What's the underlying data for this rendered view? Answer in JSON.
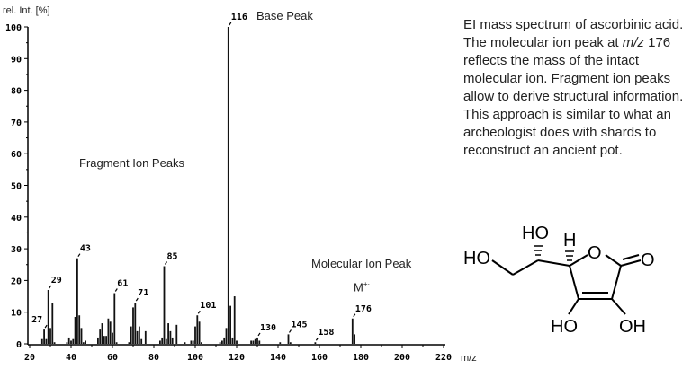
{
  "chart_data": {
    "type": "bar",
    "title": "EI mass spectrum of ascorbinic acid",
    "xlabel": "m/z",
    "ylabel": "rel. Int. [%]",
    "xlim": [
      20,
      220
    ],
    "ylim": [
      0,
      100
    ],
    "xticks": [
      20,
      40,
      60,
      80,
      100,
      120,
      140,
      160,
      180,
      200,
      220
    ],
    "yticks": [
      0,
      10,
      20,
      30,
      40,
      50,
      60,
      70,
      80,
      90,
      100
    ],
    "peaks": [
      [
        26,
        1.5
      ],
      [
        27,
        4.5
      ],
      [
        28,
        1.5
      ],
      [
        29,
        17
      ],
      [
        30,
        5
      ],
      [
        31,
        13
      ],
      [
        32,
        0.5
      ],
      [
        38,
        0.5
      ],
      [
        39,
        2
      ],
      [
        40,
        1
      ],
      [
        41,
        1.5
      ],
      [
        42,
        8.5
      ],
      [
        43,
        27
      ],
      [
        44,
        9
      ],
      [
        45,
        5
      ],
      [
        46,
        0.5
      ],
      [
        47,
        1
      ],
      [
        53,
        2
      ],
      [
        54,
        4.5
      ],
      [
        55,
        6.5
      ],
      [
        56,
        2.5
      ],
      [
        57,
        2.5
      ],
      [
        58,
        8
      ],
      [
        59,
        7
      ],
      [
        60,
        3.5
      ],
      [
        61,
        16
      ],
      [
        62,
        0.5
      ],
      [
        68,
        0.5
      ],
      [
        69,
        5.5
      ],
      [
        70,
        11.5
      ],
      [
        71,
        13
      ],
      [
        72,
        4
      ],
      [
        73,
        5.5
      ],
      [
        74,
        1.5
      ],
      [
        76,
        4
      ],
      [
        83,
        1
      ],
      [
        84,
        2
      ],
      [
        85,
        24.5
      ],
      [
        86,
        1.5
      ],
      [
        87,
        6.5
      ],
      [
        88,
        4
      ],
      [
        89,
        2
      ],
      [
        91,
        6
      ],
      [
        95,
        0.5
      ],
      [
        98,
        1
      ],
      [
        99,
        1
      ],
      [
        100,
        5.5
      ],
      [
        101,
        9
      ],
      [
        102,
        7
      ],
      [
        103,
        0.5
      ],
      [
        112,
        0.5
      ],
      [
        113,
        1
      ],
      [
        114,
        2
      ],
      [
        115,
        5
      ],
      [
        116,
        100
      ],
      [
        117,
        12
      ],
      [
        118,
        2
      ],
      [
        119,
        15
      ],
      [
        120,
        1
      ],
      [
        127,
        1
      ],
      [
        128,
        1
      ],
      [
        129,
        1.5
      ],
      [
        130,
        2
      ],
      [
        131,
        1
      ],
      [
        141,
        0.5
      ],
      [
        145,
        3
      ],
      [
        146,
        0.5
      ],
      [
        158,
        0.5
      ],
      [
        176,
        8
      ],
      [
        177,
        3
      ]
    ],
    "peak_labels": [
      {
        "mz": 27,
        "text": "27"
      },
      {
        "mz": 29,
        "text": "29"
      },
      {
        "mz": 43,
        "text": "43"
      },
      {
        "mz": 61,
        "text": "61"
      },
      {
        "mz": 71,
        "text": "71"
      },
      {
        "mz": 85,
        "text": "85"
      },
      {
        "mz": 101,
        "text": "101"
      },
      {
        "mz": 116,
        "text": "116"
      },
      {
        "mz": 130,
        "text": "130"
      },
      {
        "mz": 145,
        "text": "145"
      },
      {
        "mz": 158,
        "text": "158"
      },
      {
        "mz": 176,
        "text": "176"
      }
    ],
    "annotations": {
      "base_peak": "Base Peak",
      "fragment": "Fragment Ion Peaks",
      "molecular": "Molecular Ion Peak",
      "m_plus": "M",
      "m_plus_sup": "+·"
    }
  },
  "caption": {
    "part1": "EI mass spectrum of ascorbinic acid. The molecular ion peak at ",
    "mz": "m/z",
    "part2": " 176 reflects the mass of the intact molecular ion. Fragment ion peaks allow to derive structural information. This approach is similar to what an archeologist does with shards to reconstruct an ancient pot."
  },
  "molecule": {
    "name": "ascorbic acid",
    "labels": {
      "ho_left": "HO",
      "ho_top": "HO",
      "h": "H",
      "o_ring": "O",
      "o_carbonyl": "O",
      "ho_bottom": "HO",
      "oh_bottom": "OH"
    }
  }
}
